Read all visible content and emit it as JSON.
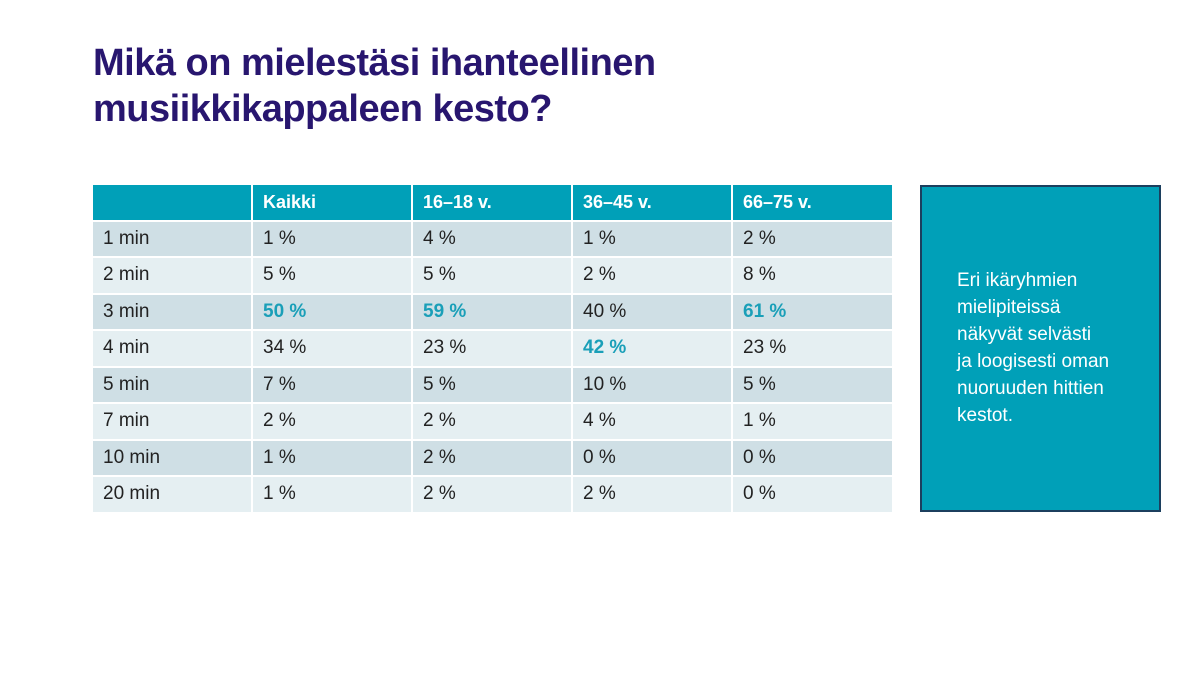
{
  "title": "Mikä on mielestäsi ihanteellinen\nmusiikkikappaleen kesto?",
  "table": {
    "headers": [
      "",
      "Kaikki",
      "16–18 v.",
      "36–45 v.",
      "66–75 v."
    ],
    "rows": [
      {
        "label": "1 min",
        "values": [
          "1 %",
          "4 %",
          "1 %",
          "2 %"
        ]
      },
      {
        "label": "2 min",
        "values": [
          "5 %",
          "5 %",
          "2 %",
          "8 %"
        ]
      },
      {
        "label": "3 min",
        "values": [
          "50 %",
          "59 %",
          "40 %",
          "61 %"
        ],
        "highlight": [
          true,
          true,
          false,
          true
        ]
      },
      {
        "label": "4 min",
        "values": [
          "34 %",
          "23 %",
          "42 %",
          "23 %"
        ],
        "highlight": [
          false,
          false,
          true,
          false
        ]
      },
      {
        "label": "5 min",
        "values": [
          "7 %",
          "5 %",
          "10 %",
          "5 %"
        ]
      },
      {
        "label": "7 min",
        "values": [
          "2 %",
          "2 %",
          "4 %",
          "1 %"
        ]
      },
      {
        "label": "10 min",
        "values": [
          "1 %",
          "2 %",
          "0 %",
          "0 %"
        ]
      },
      {
        "label": "20 min",
        "values": [
          "1 %",
          "2 %",
          "2 %",
          "0 %"
        ]
      }
    ]
  },
  "note": {
    "text": "Eri ikäryhmien\nmielipiteissä\nnäkyvät selvästi\nja loogisesti oman\nnuoruuden hittien\nkestot."
  },
  "colors": {
    "title": "#28166f",
    "header_bg": "#00a0b8",
    "highlight_text": "#1a9fb8",
    "row_dark": "#cfdfe5",
    "row_light": "#e5eff2",
    "note_bg": "#00a0b8",
    "note_border": "#1c3f5e"
  }
}
